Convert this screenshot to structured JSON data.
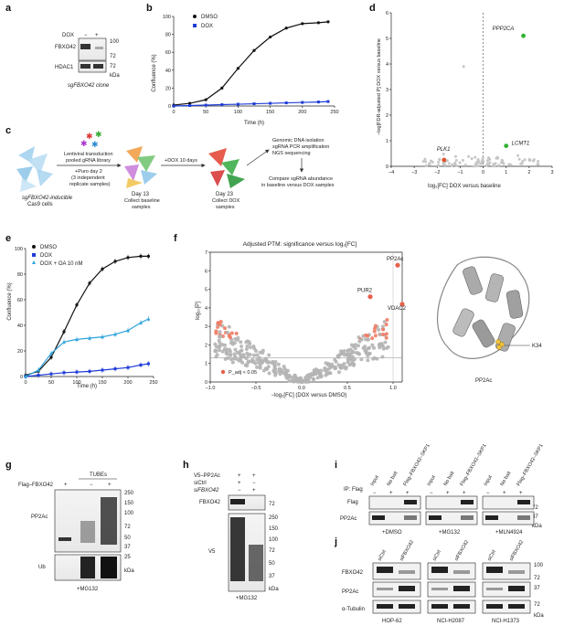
{
  "panel_letters": [
    "a",
    "b",
    "c",
    "d",
    "e",
    "f",
    "g",
    "h",
    "i",
    "j"
  ],
  "a": {
    "dox_label": "DOX",
    "minus": "−",
    "plus": "+",
    "rows": [
      "FBXO42",
      "HDAC1"
    ],
    "mw": [
      "100",
      "72",
      "72"
    ],
    "kda": "kDa",
    "caption": "sgFBXO42 clone"
  },
  "b": {
    "xlabel": "Time (h)",
    "ylabel": "Confluence (%)",
    "legend": [
      "DMSO",
      "DOX"
    ]
  },
  "c": {
    "step1": "sgFBXO42-inducible",
    "step1b": "Cas9 cells",
    "arrow1a": "Lentiviral transduction",
    "arrow1b": "pooled gRNA library",
    "arrow1c": "+Puro day 2",
    "arrow1d": "(3 independent",
    "arrow1e": "replicate samples)",
    "day13a": "Day 13",
    "day13b": "Collect baseline",
    "day13c": "samples",
    "arrow2": "+DOX 10 days",
    "day23a": "Day 23",
    "day23b": "Collect DOX",
    "day23c": "samples",
    "ngs1": "Genomic DNA isolation",
    "ngs2": "sgRNA PCR amplification",
    "ngs3": "NGS sequencing",
    "cmp1": "Compare sgRNA abundance",
    "cmp2": "in baseline versus DOX samples"
  },
  "d": {
    "xlabel": "log₂[FC] DOX versus baseline",
    "ylabel": "−log[FDR-adjusted P] DOX versus baseline",
    "labels": [
      "PPP2CA",
      "PLK1",
      "LCMT1"
    ]
  },
  "e": {
    "xlabel": "Time (h)",
    "ylabel": "Confluence (%)",
    "legend": [
      "DMSO",
      "DOX",
      "DOX + OA 10 nM"
    ]
  },
  "f": {
    "title": "Adjusted PTM: significance versus log₂[FC]",
    "xlabel": "−log₂[FC] (DOX versus DMSO)",
    "ylabel": "log₁₀[P]",
    "labels": [
      "PP2Ac",
      "PUR2",
      "VDAC2"
    ],
    "legend": "P_adj < 0.05",
    "struct_label": "K34",
    "struct_caption": "PP2Ac"
  },
  "g": {
    "header": "TUBEs",
    "row_label": "Flag–FBXO42",
    "signs": [
      "+",
      "−",
      "+"
    ],
    "bands": [
      "PP2Ac",
      "Ub"
    ],
    "mw": [
      "250",
      "150",
      "100",
      "72",
      "50",
      "37",
      "25"
    ],
    "kda": "kDa",
    "caption": "+MG132"
  },
  "h": {
    "rows": [
      "V5–PP2Ac",
      "siCtrl",
      "siFBXO42"
    ],
    "signs": [
      [
        "+",
        "+"
      ],
      [
        "+",
        "−"
      ],
      [
        "−",
        "+"
      ]
    ],
    "bands": [
      "FBXO42",
      "V5"
    ],
    "mw": [
      "72",
      "250",
      "150",
      "100",
      "72",
      "50",
      "37"
    ],
    "kda": "kDa",
    "caption": "+MG132"
  },
  "i": {
    "lanes": [
      "Input",
      "No bait",
      "Flag–FBXO42–SKP1"
    ],
    "ip": "IP: Flag",
    "signs": [
      "−",
      "+",
      "+"
    ],
    "bands": [
      "Flag",
      "PP2Ac"
    ],
    "mw": [
      "72",
      "37"
    ],
    "kda": "kDa",
    "conditions": [
      "+DMSO",
      "+MG132",
      "+MLN4924"
    ]
  },
  "j": {
    "lanes": [
      "siCtrl",
      "siFBXO42"
    ],
    "bands": [
      "FBXO42",
      "PP2Ac",
      "α-Tubulin"
    ],
    "mw": [
      "100",
      "72",
      "37",
      "72"
    ],
    "kda": "kDa",
    "cells": [
      "HOP-62",
      "NCI-H2087",
      "NCI-H1373"
    ]
  },
  "chart_data": [
    {
      "type": "line",
      "panel": "b",
      "x": [
        0,
        25,
        50,
        75,
        100,
        125,
        150,
        175,
        200,
        225,
        240
      ],
      "series": [
        {
          "name": "DMSO",
          "color": "#111111",
          "values": [
            1,
            3,
            7,
            20,
            42,
            62,
            77,
            87,
            92,
            93,
            94
          ]
        },
        {
          "name": "DOX",
          "color": "#1f3cd8",
          "values": [
            0,
            0.5,
            1,
            1.5,
            2,
            2.5,
            3,
            3.5,
            4,
            4.5,
            5
          ]
        }
      ],
      "xlabel": "Time (h)",
      "ylabel": "Confluence (%)",
      "xlim": [
        0,
        250
      ],
      "ylim": [
        0,
        100
      ],
      "xticks": [
        0,
        50,
        100,
        150,
        200,
        250
      ],
      "yticks": [
        0,
        20,
        40,
        60,
        80,
        100
      ]
    },
    {
      "type": "scatter",
      "panel": "d",
      "points": [
        {
          "name": "PPP2CA",
          "x": 1.75,
          "y": 5.1,
          "color": "#2fb32f"
        },
        {
          "name": "PLK1",
          "x": -1.7,
          "y": 0.25,
          "color": "#e0522c"
        },
        {
          "name": "LCMT1",
          "x": 1.0,
          "y": 0.8,
          "color": "#2fb32f"
        }
      ],
      "xlabel": "log₂[FC] DOX versus baseline",
      "xlim": [
        -4,
        3
      ],
      "ylim": [
        0,
        6
      ],
      "xticks": [
        -4,
        -3,
        -2,
        -1,
        0,
        1,
        2,
        3
      ],
      "yticks": [
        0,
        1,
        2,
        3,
        4,
        5,
        6
      ]
    },
    {
      "type": "line",
      "panel": "e",
      "x": [
        0,
        25,
        50,
        75,
        100,
        125,
        150,
        175,
        200,
        225,
        240
      ],
      "series": [
        {
          "name": "DMSO",
          "color": "#111111",
          "values": [
            1,
            4,
            15,
            35,
            56,
            73,
            84,
            90,
            93,
            94,
            94
          ]
        },
        {
          "name": "DOX",
          "color": "#1f3cd8",
          "values": [
            0,
            1,
            2,
            3,
            3.5,
            4,
            5,
            6,
            7,
            9,
            10
          ]
        },
        {
          "name": "DOX + OA 10 nM",
          "color": "#2fa3dd",
          "values": [
            0,
            5,
            18,
            27,
            29,
            30,
            31,
            33,
            36,
            42,
            45
          ]
        }
      ],
      "xlabel": "Time (h)",
      "ylabel": "Confluence (%)",
      "xlim": [
        0,
        250
      ],
      "ylim": [
        0,
        100
      ],
      "xticks": [
        0,
        50,
        100,
        150,
        200,
        250
      ],
      "yticks": [
        0,
        20,
        40,
        60,
        80,
        100
      ]
    },
    {
      "type": "scatter",
      "panel": "f",
      "points": [
        {
          "name": "PP2Ac",
          "x": 1.05,
          "y": 6.3,
          "color": "#e8604a"
        },
        {
          "name": "PUR2",
          "x": 0.75,
          "y": 4.6,
          "color": "#e8604a"
        },
        {
          "name": "VDAC2",
          "x": 1.1,
          "y": 4.2,
          "color": "#e8604a"
        }
      ],
      "title": "Adjusted PTM: significance versus log₂[FC]",
      "xlabel": "−log₂[FC] (DOX versus DMSO)",
      "ylabel": "log₁₀[P]",
      "xlim": [
        -1.0,
        1.1
      ],
      "ylim": [
        0,
        7
      ],
      "threshold_y": 1.3,
      "xticks": [
        -1.0,
        -0.5,
        0,
        0.5,
        1.0
      ],
      "yticks": [
        0,
        1,
        2,
        3,
        4,
        5,
        6,
        7
      ]
    }
  ]
}
